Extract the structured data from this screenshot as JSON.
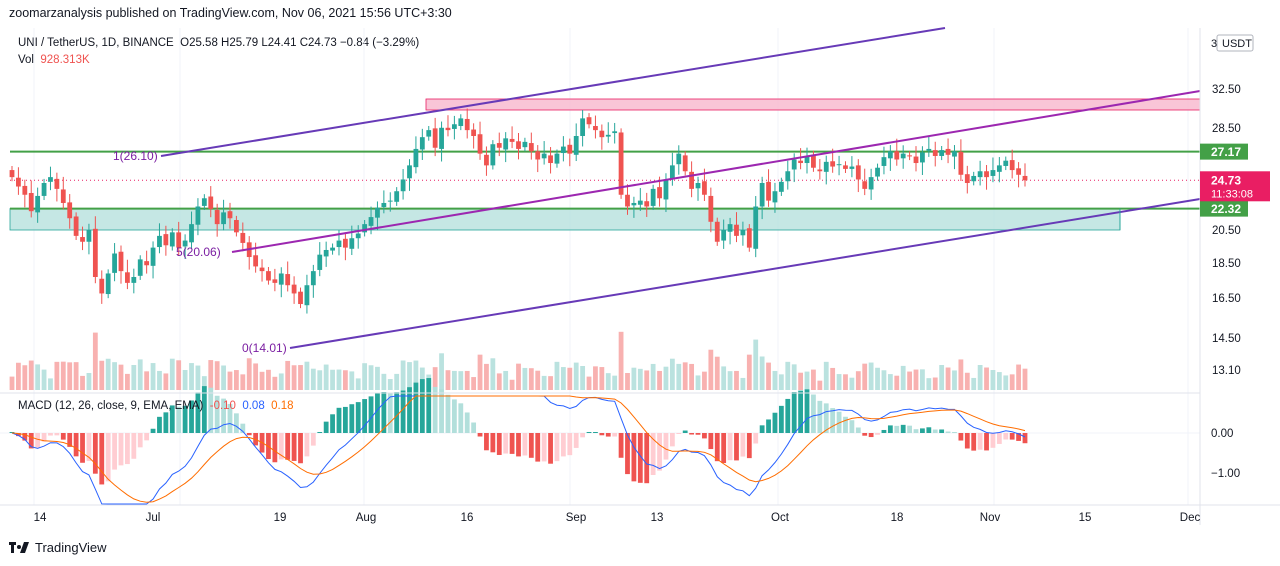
{
  "header": {
    "publisher_line": "zoomarzanalysis published on TradingView.com, Nov 06, 2021 15:56 UTC+3:30"
  },
  "legend": {
    "symbol": "UNI / TetherUS, 1D, BINANCE",
    "ohlc": "O25.58  H25.79  L24.41  C24.73  −0.84 (−3.29%)",
    "vol_label": "Vol",
    "vol_value": "928.313K"
  },
  "macd": {
    "label": "MACD (12, 26, close, 9, EMA, EMA)",
    "hist": "-0.10",
    "macd": "0.08",
    "signal": "0.18"
  },
  "footer": {
    "brand": "TradingView"
  },
  "price_axis": {
    "currency": "USDT",
    "currency_prefix": "3",
    "ticks": [
      "32.50",
      "28.50",
      "20.50",
      "18.50",
      "16.50",
      "14.50",
      "13.10"
    ],
    "badges": [
      {
        "text": "27.17",
        "color": "#43a047"
      },
      {
        "text": "22.32",
        "color": "#43a047"
      }
    ],
    "last_price": {
      "text": "24.73",
      "countdown": "11:33:08",
      "color": "#e91e63"
    }
  },
  "macd_axis": {
    "ticks": [
      "0.00",
      "−1.00"
    ]
  },
  "time_axis": {
    "labels": [
      "14",
      "Jul",
      "19",
      "Aug",
      "16",
      "Sep",
      "13",
      "Oct",
      "18",
      "Nov",
      "15",
      "Dec"
    ]
  },
  "annotations": {
    "fib_1": "1(26.10)",
    "fib_05": "5(20.06)",
    "fib_0": "0(14.01)"
  },
  "colors": {
    "up": "#26a69a",
    "down": "#ef5350",
    "channel": "#673ab7",
    "mid_channel": "#9c27b0",
    "support_zone": "#b2dfdb",
    "resistance_zone": "#f8bbd0",
    "level_line": "#43a047"
  },
  "chart_data": {
    "type": "candlestick",
    "symbol": "UNI/USDT",
    "timeframe": "1D",
    "last": {
      "open": 25.58,
      "high": 25.79,
      "low": 24.41,
      "close": 24.73,
      "change": -0.84,
      "change_pct": -3.29
    },
    "volume_last": "928.313K",
    "levels": [
      27.17,
      22.32
    ],
    "support_zone": [
      20.5,
      22.32
    ],
    "resistance_zone": [
      30.0,
      31.2
    ],
    "fib_levels": {
      "1": 26.1,
      "0.5": 20.06,
      "0": 14.01
    },
    "macd": {
      "hist": -0.1,
      "macd": 0.08,
      "signal": 0.18
    },
    "close_series": [
      25.0,
      24.2,
      23.5,
      22.1,
      23.4,
      24.5,
      25.0,
      24.0,
      22.8,
      21.5,
      20.0,
      19.5,
      20.5,
      16.5,
      15.1,
      16.8,
      18.5,
      17.0,
      16.0,
      16.5,
      18.0,
      17.5,
      19.0,
      20.0,
      19.2,
      20.3,
      19.0,
      19.6,
      21.0,
      22.5,
      23.2,
      22.3,
      21.0,
      22.0,
      21.5,
      20.3,
      19.4,
      18.2,
      17.4,
      17.0,
      16.2,
      16.0,
      16.8,
      15.8,
      15.1,
      14.2,
      15.8,
      17.0,
      18.4,
      18.8,
      19.0,
      19.6,
      19.0,
      19.8,
      20.2,
      21.0,
      21.6,
      22.4,
      22.8,
      23.0,
      23.8,
      24.8,
      26.0,
      27.4,
      28.4,
      29.0,
      27.5,
      29.2,
      29.0,
      29.5,
      30.0,
      29.0,
      28.5,
      27.0,
      26.0,
      27.8,
      27.5,
      28.3,
      28.0,
      27.4,
      28.0,
      27.2,
      26.5,
      27.0,
      26.2,
      27.0,
      27.6,
      27.0,
      28.5,
      30.0,
      29.5,
      29.0,
      28.4,
      28.6,
      28.9,
      23.5,
      22.5,
      22.8,
      23.0,
      22.5,
      24.0,
      23.2,
      24.8,
      26.0,
      27.0,
      25.5,
      24.0,
      24.5,
      23.5,
      21.2,
      19.5,
      20.5,
      21.0,
      20.0,
      20.5,
      19.0,
      22.5,
      24.5,
      23.0,
      23.8,
      24.6,
      25.5,
      26.5,
      26.2,
      26.8,
      25.8,
      25.5,
      26.3,
      25.9,
      26.1,
      25.7,
      25.9,
      24.8,
      24.0,
      25.0,
      25.8,
      26.7,
      27.2,
      26.5,
      27.0,
      26.8,
      26.2,
      27.1,
      27.4,
      26.8,
      27.3,
      26.9,
      27.2,
      25.2,
      24.5,
      25.1,
      25.5,
      25.0,
      25.6,
      26.0,
      26.4,
      25.6,
      25.2,
      24.73
    ]
  }
}
